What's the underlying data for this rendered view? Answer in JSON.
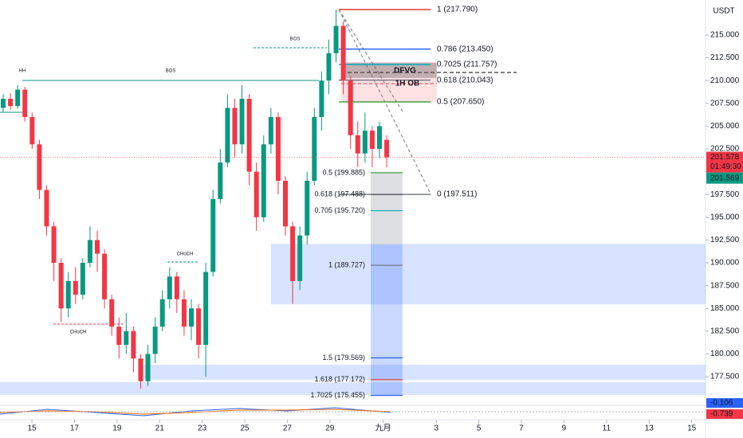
{
  "chart_data": {
    "type": "candlestick",
    "unit": "USDT",
    "xlim": [
      13.5,
      46.65
    ],
    "ylim": [
      174.36,
      218.84
    ],
    "xticks": [
      15,
      17,
      19,
      21,
      23,
      25,
      27,
      29,
      {
        "value": 31.5,
        "label": "九月"
      },
      {
        "value": 34,
        "label": "3"
      },
      {
        "value": 36,
        "label": "5"
      },
      {
        "value": 38,
        "label": "7"
      },
      {
        "value": 40,
        "label": "9"
      },
      {
        "value": 42,
        "label": "11"
      },
      {
        "value": 44,
        "label": "13"
      },
      {
        "value": 46,
        "label": "15"
      }
    ],
    "yticks": [
      {
        "value": 215,
        "label": "215.000"
      },
      {
        "value": 212.5,
        "label": "212.500"
      },
      {
        "value": 210,
        "label": "210.000"
      },
      {
        "value": 207.5,
        "label": "207.500"
      },
      {
        "value": 205,
        "label": "205.000"
      },
      {
        "value": 202.5,
        "label": "202.500"
      },
      {
        "value": 200,
        "label": "200.000"
      },
      {
        "value": 197.5,
        "label": "197.500"
      },
      {
        "value": 195,
        "label": "195.000"
      },
      {
        "value": 192.5,
        "label": "192.500"
      },
      {
        "value": 190,
        "label": "190.000"
      },
      {
        "value": 187.5,
        "label": "187.500"
      },
      {
        "value": 185,
        "label": "185.000"
      },
      {
        "value": 182.5,
        "label": "182.500"
      },
      {
        "value": 180,
        "label": "180.000"
      },
      {
        "value": 177.5,
        "label": "177.500"
      }
    ],
    "up_color": "#089981",
    "down_color": "#f23645",
    "candles": [
      [
        13.65,
        207,
        208.5,
        206.5,
        208
      ],
      [
        13.99,
        208,
        208.6,
        206.8,
        207.2
      ],
      [
        14.33,
        207.2,
        209.5,
        206.9,
        209
      ],
      [
        14.67,
        209,
        209.3,
        205.5,
        206
      ],
      [
        15.01,
        206,
        206.5,
        202.5,
        203
      ],
      [
        15.35,
        203,
        203.5,
        197,
        198
      ],
      [
        15.69,
        198,
        198.5,
        193,
        194
      ],
      [
        16.03,
        194,
        194.5,
        188,
        190
      ],
      [
        16.37,
        190,
        190.5,
        183.5,
        185
      ],
      [
        16.71,
        185,
        189,
        184,
        188
      ],
      [
        17.05,
        188,
        189.5,
        185.5,
        186.5
      ],
      [
        17.39,
        186.5,
        190.5,
        186,
        190
      ],
      [
        17.73,
        190,
        194,
        189.5,
        192.5
      ],
      [
        18.07,
        192.5,
        193.5,
        189,
        191
      ],
      [
        18.41,
        191,
        191.5,
        185,
        186
      ],
      [
        18.75,
        186,
        186.5,
        182,
        183
      ],
      [
        19.09,
        183,
        184,
        179.5,
        181
      ],
      [
        19.43,
        181,
        184.5,
        180,
        182.5
      ],
      [
        19.77,
        182.5,
        183,
        178,
        179.5
      ],
      [
        20.11,
        179.5,
        180,
        176.2,
        177
      ],
      [
        20.45,
        177,
        181,
        176.5,
        180
      ],
      [
        20.79,
        180,
        184,
        179,
        183
      ],
      [
        21.13,
        183,
        187,
        182.5,
        186
      ],
      [
        21.47,
        186,
        189.5,
        185,
        188.5
      ],
      [
        21.81,
        188.5,
        189,
        184.5,
        186
      ],
      [
        22.15,
        186,
        187,
        182,
        183
      ],
      [
        22.49,
        183,
        186,
        181.5,
        185
      ],
      [
        22.83,
        185,
        185.5,
        179.5,
        181
      ],
      [
        23.17,
        181,
        190,
        177.5,
        189
      ],
      [
        23.51,
        189,
        198,
        188.5,
        197
      ],
      [
        23.85,
        197,
        202.5,
        196.5,
        201
      ],
      [
        24.19,
        201,
        208.5,
        200.5,
        207
      ],
      [
        24.53,
        207,
        208,
        201.5,
        203
      ],
      [
        24.87,
        203,
        209.5,
        202,
        208
      ],
      [
        25.21,
        208,
        208.5,
        198.5,
        200
      ],
      [
        25.55,
        200,
        201,
        193.5,
        195
      ],
      [
        25.89,
        195,
        204,
        194.5,
        203
      ],
      [
        26.23,
        203,
        207,
        202,
        206
      ],
      [
        26.57,
        206,
        206.5,
        197.5,
        199
      ],
      [
        26.91,
        199,
        199.5,
        193,
        194
      ],
      [
        27.25,
        194,
        194.5,
        185.5,
        188
      ],
      [
        27.59,
        188,
        194,
        187,
        193
      ],
      [
        27.93,
        193,
        200,
        192,
        199
      ],
      [
        28.27,
        199,
        207,
        198.5,
        206
      ],
      [
        28.61,
        206,
        211,
        204.5,
        210
      ],
      [
        28.95,
        210,
        214.5,
        208.5,
        213
      ],
      [
        29.29,
        213,
        217.79,
        212,
        216
      ],
      [
        29.63,
        216,
        216.5,
        208.5,
        210
      ],
      [
        29.97,
        210,
        210.5,
        202.5,
        204
      ],
      [
        30.31,
        204,
        205.5,
        200.5,
        202
      ],
      [
        30.65,
        202,
        206.5,
        201,
        204.5
      ],
      [
        30.99,
        204.5,
        205,
        200.5,
        202.5
      ],
      [
        31.33,
        202.5,
        205.5,
        201.5,
        205
      ],
      [
        31.67,
        203.5,
        204,
        200.5,
        201.578
      ]
    ],
    "zones": [
      {
        "x": [
          26.23,
          46.65
        ],
        "y": [
          185.44,
          192.07
        ],
        "color": "rgba(41,98,255,0.18)"
      },
      {
        "x": [
          20.05,
          46.65
        ],
        "y": [
          177.15,
          178.81
        ],
        "color": "rgba(41,98,255,0.18)"
      },
      {
        "x": [
          13.5,
          46.65
        ],
        "y": [
          175.5,
          176.89
        ],
        "color": "rgba(41,98,255,0.18)"
      },
      {
        "x": [
          29.53,
          34.02
        ],
        "y": [
          207.67,
          212.03
        ],
        "color": "rgba(242,54,69,0.15)"
      },
      {
        "x": [
          29.53,
          34.02
        ],
        "y": [
          210.29,
          211.95
        ],
        "color": "rgba(80,80,80,0.35)"
      },
      {
        "x": [
          30.92,
          32.41
        ],
        "y": [
          191.98,
          199.91
        ],
        "color": "rgba(120,123,134,0.25)"
      },
      {
        "x": [
          30.92,
          32.41
        ],
        "y": [
          175.5,
          191.98
        ],
        "color": "rgba(41,98,255,0.25)"
      }
    ],
    "fib_right": [
      {
        "label": "1 (217.790)",
        "value": 217.79,
        "color": "#e53935"
      },
      {
        "label": "0.786 (213.450)",
        "value": 213.45,
        "color": "#2962ff"
      },
      {
        "label": "0.7025 (211.757)",
        "value": 211.757,
        "color": "#00acc1"
      },
      {
        "label": "0.618 (210.043)",
        "value": 210.043,
        "color": "#787b86"
      },
      {
        "label": "0.5 (207.650)",
        "value": 207.65,
        "color": "#43a047"
      },
      {
        "label": "0 (197.511)",
        "value": 197.511,
        "color": "#787b86"
      }
    ],
    "fib_left": [
      {
        "label": "0.5 (199.885)",
        "value": 199.885,
        "color": "#43a047"
      },
      {
        "label": "0.618 (197.488)",
        "value": 197.488,
        "color": "#5d606b"
      },
      {
        "label": "0.705 (195.720)",
        "value": 195.72,
        "color": "#00acc1"
      },
      {
        "label": "1 (189.727)",
        "value": 189.727,
        "color": "#787b86"
      },
      {
        "label": "1.5 (179.569)",
        "value": 179.569,
        "color": "#2962ff"
      },
      {
        "label": "1.618 (177.172)",
        "value": 177.172,
        "color": "#e53935"
      },
      {
        "label": "1.7025 (175.455)",
        "value": 175.455,
        "color": "#2962ff"
      }
    ],
    "annotations": [
      "HH",
      "BOS",
      "BOS",
      "CHoCH",
      "CHoCH",
      "DFVG",
      "1H OB"
    ],
    "last_price": {
      "value": 201.578,
      "label": "201.578",
      "color": "#f23645"
    },
    "countdown": "01:49:30",
    "bid_price": {
      "value": 201.569,
      "label": "201.569",
      "color": "#089981"
    },
    "indicator_badges": [
      {
        "label": "-0.106",
        "color": "#2962ff"
      },
      {
        "label": "-0.739",
        "color": "#f23645"
      }
    ]
  }
}
